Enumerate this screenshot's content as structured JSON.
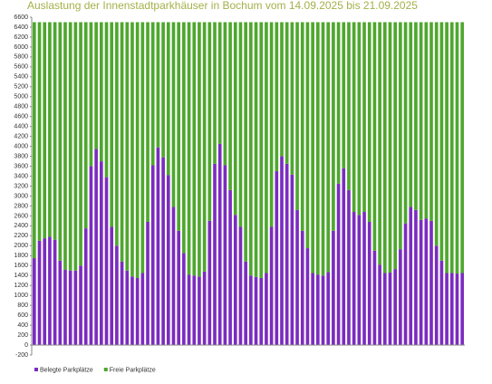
{
  "chart_data": {
    "type": "stacked_bar",
    "title": "Auslastung der Innenstadtparkhäuser in Bochum vom 14.09.2025 bis 21.09.2025",
    "categories": [
      null,
      null,
      null,
      null,
      null,
      null,
      null,
      null,
      null,
      null,
      null,
      null,
      null,
      null,
      null,
      null,
      null,
      null,
      null,
      null,
      null,
      null,
      null,
      null,
      null,
      null,
      null,
      null,
      null,
      null,
      null,
      null,
      null,
      null,
      null,
      null,
      null,
      null,
      null,
      null,
      null,
      null,
      null,
      null,
      null,
      null,
      null,
      null,
      null,
      null,
      null,
      null,
      null,
      null,
      null,
      null,
      null,
      null,
      null,
      null,
      null,
      null,
      null,
      null,
      null,
      null,
      null,
      null,
      null,
      null,
      null,
      null,
      null,
      null,
      null,
      null,
      null,
      null,
      null,
      null,
      null,
      null,
      null,
      null
    ],
    "series": [
      {
        "name": "Belegte Parkplätze",
        "color": "#7b2cbf",
        "values": [
          1750,
          2100,
          2150,
          2180,
          2120,
          1700,
          1520,
          1500,
          1500,
          1600,
          2350,
          3600,
          3950,
          3700,
          3380,
          2380,
          2000,
          1680,
          1500,
          1380,
          1350,
          1450,
          2480,
          3620,
          3980,
          3780,
          3420,
          2780,
          2300,
          1850,
          1420,
          1400,
          1380,
          1480,
          2500,
          3650,
          4050,
          3620,
          3120,
          2620,
          2380,
          1680,
          1400,
          1370,
          1350,
          1450,
          2380,
          3500,
          3800,
          3650,
          3430,
          2720,
          2300,
          1950,
          1450,
          1420,
          1400,
          1470,
          2300,
          3250,
          3560,
          3120,
          2680,
          2620,
          2680,
          2480,
          1900,
          1620,
          1450,
          1460,
          1530,
          1930,
          2450,
          2780,
          2720,
          2520,
          2550,
          2500,
          2000,
          1700,
          1450,
          1450,
          1440,
          1450
        ]
      },
      {
        "name": "Freie Parkplätze",
        "color": "#4ea72e",
        "values": [
          4750,
          4400,
          4350,
          4320,
          4380,
          4800,
          4980,
          5000,
          5000,
          4900,
          4150,
          2900,
          2550,
          2800,
          3120,
          4120,
          4500,
          4820,
          5000,
          5120,
          5150,
          5050,
          4020,
          2880,
          2520,
          2720,
          3080,
          3720,
          4200,
          4650,
          5080,
          5100,
          5120,
          5020,
          4000,
          2850,
          2450,
          2880,
          3380,
          3880,
          4120,
          4820,
          5100,
          5130,
          5150,
          5050,
          4120,
          3000,
          2700,
          2850,
          3070,
          3780,
          4200,
          4550,
          5050,
          5080,
          5100,
          5030,
          4200,
          3250,
          2940,
          3380,
          3820,
          3880,
          3820,
          4020,
          4600,
          4880,
          5050,
          5040,
          4970,
          4570,
          4050,
          3720,
          3780,
          3980,
          3950,
          4000,
          4500,
          4800,
          5050,
          5050,
          5060,
          5050
        ]
      }
    ],
    "ylim": [
      -200,
      6600
    ],
    "yticks": [
      -200,
      0,
      200,
      400,
      600,
      800,
      1000,
      1200,
      1400,
      1600,
      1800,
      2000,
      2200,
      2400,
      2600,
      2800,
      3000,
      3200,
      3400,
      3600,
      3800,
      4000,
      4200,
      4400,
      4600,
      4800,
      5000,
      5200,
      5400,
      5600,
      5800,
      6000,
      6200,
      6400,
      6600
    ],
    "legend": "bottom-left"
  }
}
